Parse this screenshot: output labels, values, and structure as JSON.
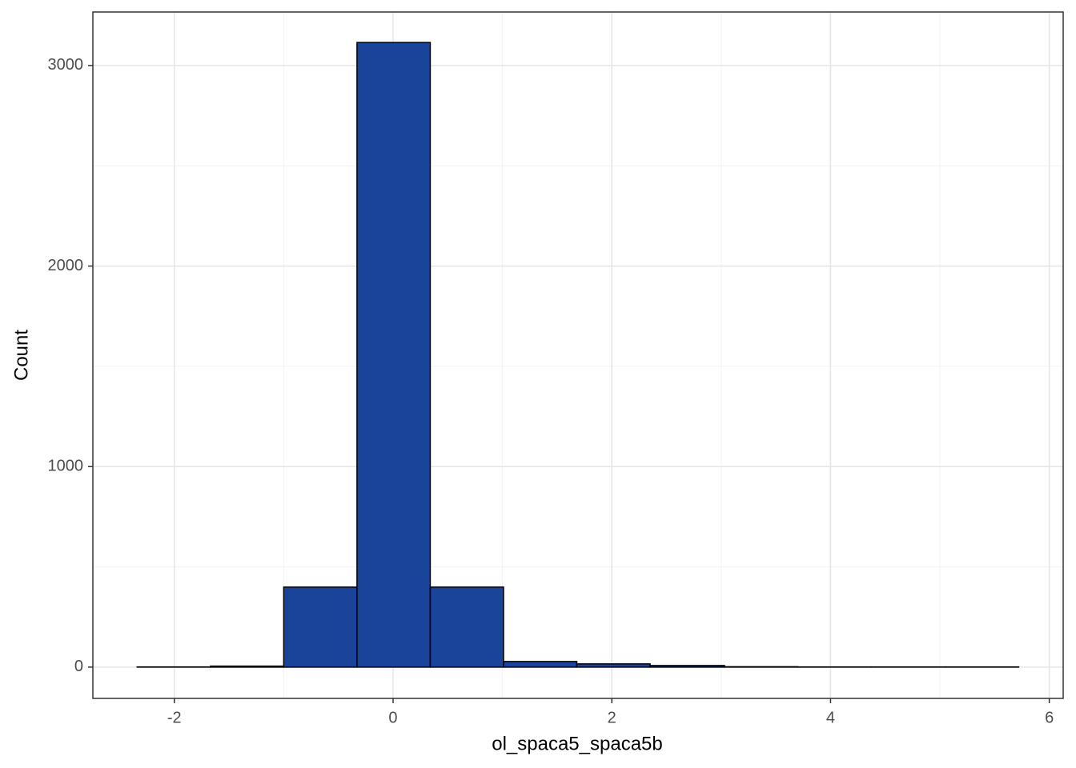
{
  "chart_data": {
    "type": "histogram",
    "x_label": "ol_spaca5_spaca5b",
    "y_label": "Count",
    "bins": [
      -2.34,
      -1.67,
      -1.0,
      -0.33,
      0.34,
      1.01,
      1.68,
      2.35,
      3.03,
      3.7,
      4.37,
      5.05,
      5.72
    ],
    "values": [
      1,
      5,
      399,
      3115,
      399,
      28,
      16,
      8,
      2,
      1,
      1,
      1
    ],
    "color": "#1a4499",
    "edge_color": "#000000",
    "xlim": [
      -2.745,
      6.127
    ],
    "ylim": [
      -156,
      3267
    ],
    "xticks": [
      -2,
      0,
      2,
      4,
      6
    ],
    "yticks": [
      0,
      1000,
      2000,
      3000
    ],
    "x_minor_ticks": [
      -1,
      1,
      3,
      5
    ],
    "y_minor_ticks": [
      500,
      1500,
      2500
    ],
    "grid": true
  }
}
